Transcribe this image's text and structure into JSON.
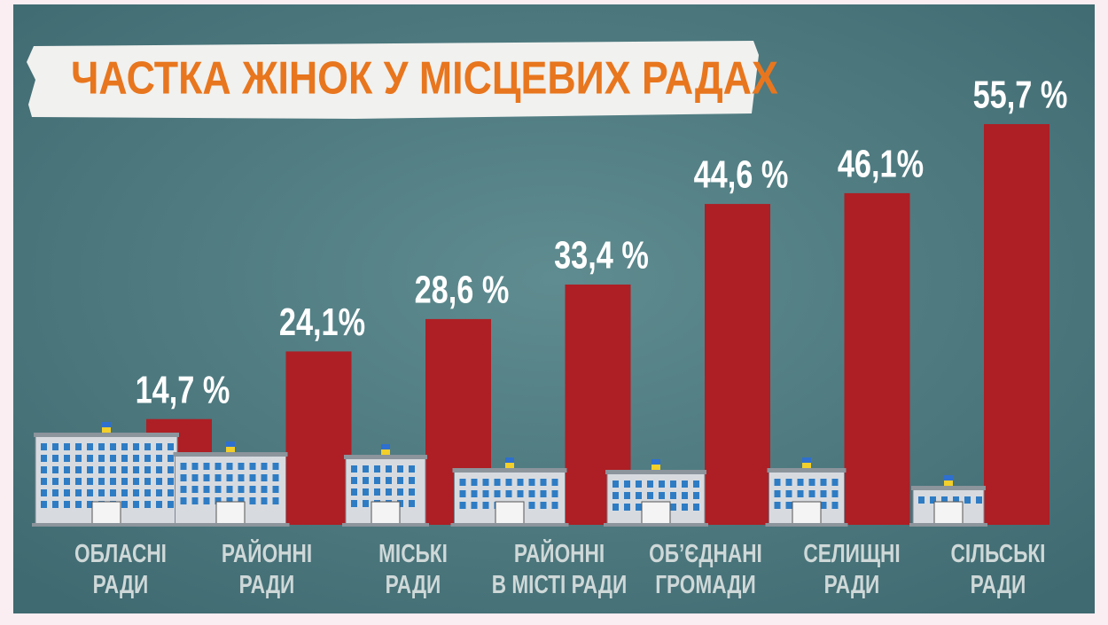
{
  "chart_data": {
    "type": "bar",
    "title": "ЧАСТКА ЖІНОК У МІСЦЕВИХ РАДАХ",
    "categories": [
      "ОБЛАСНІ\nРАДИ",
      "РАЙОННІ\nРАДИ",
      "МІСЬКІ\nРАДИ",
      "РАЙОННІ\nВ МІСТІ РАДИ",
      "ОБ’ЄДНАНІ\nГРОМАДИ",
      "СЕЛИЩНІ\nРАДИ",
      "СІЛЬСЬКІ\nРАДИ"
    ],
    "values": [
      14.7,
      24.1,
      28.6,
      33.4,
      44.6,
      46.1,
      55.7
    ],
    "value_labels": [
      "14,7 %",
      "24,1%",
      "28,6 %",
      "33,4 %",
      "44,6 %",
      "46,1%",
      "55,7 %"
    ],
    "color": "#ad1f24"
  }
}
